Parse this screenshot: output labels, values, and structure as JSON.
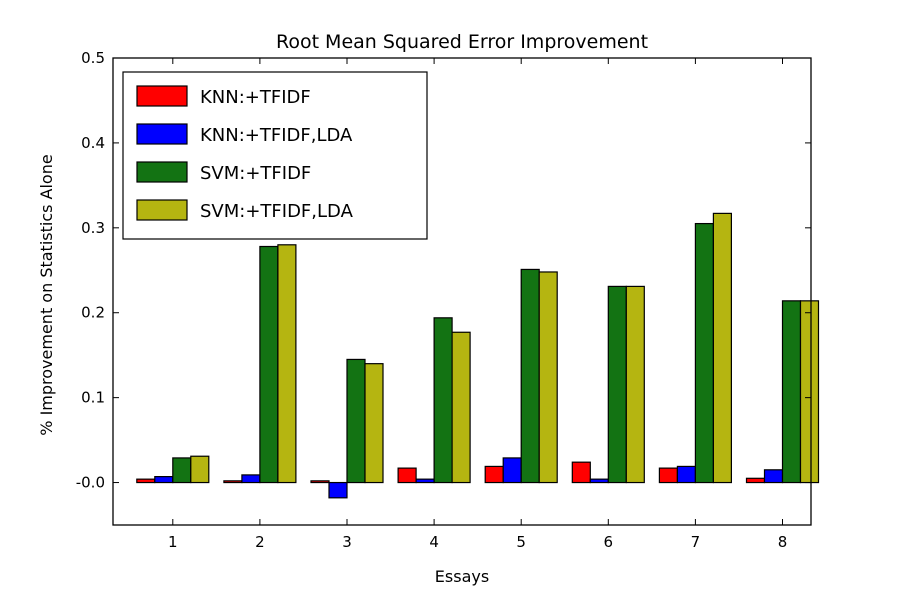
{
  "chart_data": {
    "type": "bar",
    "title": "Root Mean Squared Error Improvement",
    "xlabel": "Essays",
    "ylabel": "% Improvement on Statistics Alone",
    "categories": [
      "1",
      "2",
      "3",
      "4",
      "5",
      "6",
      "7",
      "8"
    ],
    "ylim": [
      -0.05,
      0.5
    ],
    "yticks": [
      "-0.0",
      "0.1",
      "0.2",
      "0.3",
      "0.4",
      "0.5"
    ],
    "grid": false,
    "legend_position": "top-left",
    "series": [
      {
        "name": "KNN:+TFIDF",
        "color": "#ff0000",
        "values": [
          0.004,
          0.002,
          0.002,
          0.017,
          0.019,
          0.024,
          0.017,
          0.005
        ]
      },
      {
        "name": "KNN:+TFIDF,LDA",
        "color": "#0000ff",
        "values": [
          0.007,
          0.009,
          -0.018,
          0.004,
          0.029,
          0.004,
          0.019,
          0.015
        ]
      },
      {
        "name": "SVM:+TFIDF",
        "color": "#137313",
        "values": [
          0.029,
          0.278,
          0.145,
          0.194,
          0.251,
          0.231,
          0.305,
          0.214
        ]
      },
      {
        "name": "SVM:+TFIDF,LDA",
        "color": "#b5b511",
        "values": [
          0.031,
          0.28,
          0.14,
          0.177,
          0.248,
          0.231,
          0.317,
          0.214
        ]
      }
    ]
  }
}
